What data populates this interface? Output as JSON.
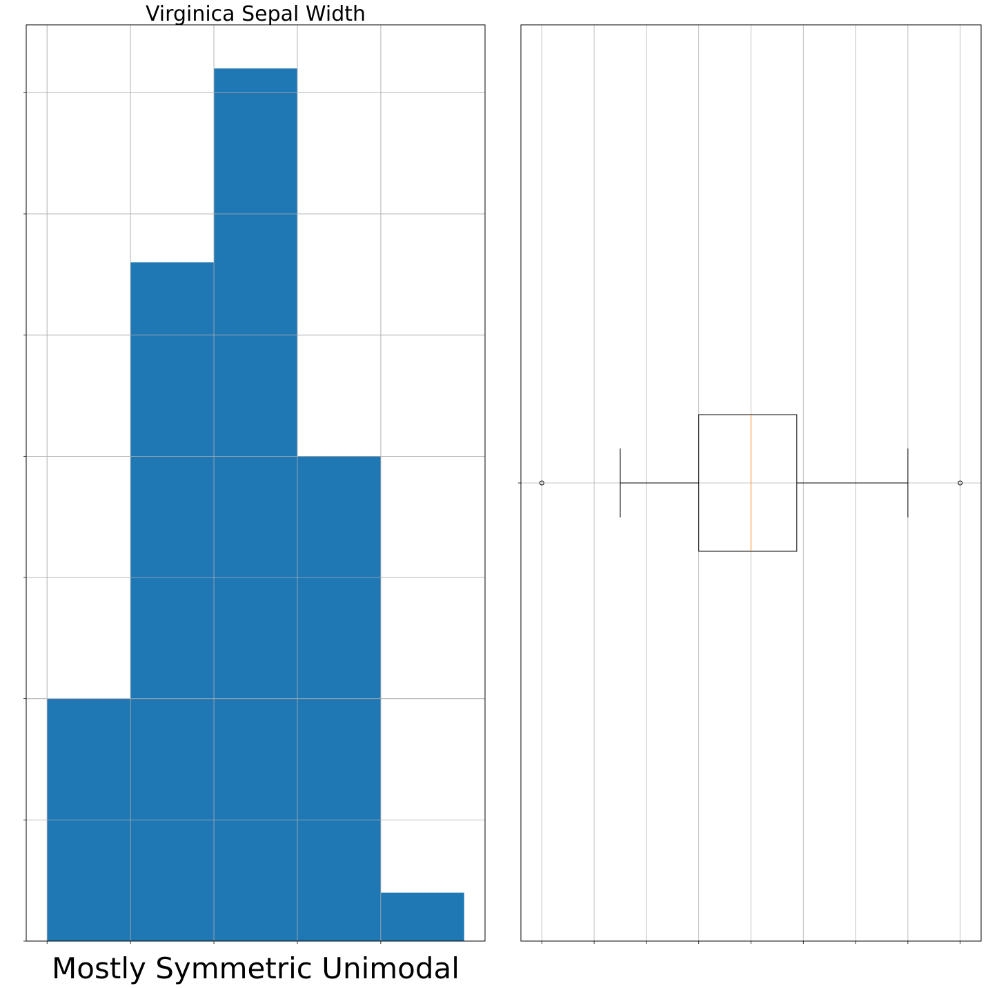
{
  "chart_data": [
    {
      "type": "bar",
      "chart_kind": "histogram",
      "title": "Virginica Sepal Width",
      "xlabel": "Mostly Symmetric Unimodal",
      "ylabel": "",
      "bin_edges": [
        2.2,
        2.52,
        2.84,
        3.16,
        3.48,
        3.8
      ],
      "values": [
        5,
        14,
        18,
        10,
        1
      ],
      "xticks": [
        "2.20",
        "2.52",
        "2.84",
        "3.16",
        "3.48"
      ],
      "yticks": [
        "0.0",
        "2.5",
        "5.0",
        "7.5",
        "10.0",
        "12.5",
        "15.0",
        "17.5"
      ],
      "xlim": [
        2.12,
        3.88
      ],
      "ylim": [
        0,
        18.9
      ],
      "grid": true,
      "bar_color": "#1f77b4"
    },
    {
      "type": "boxplot",
      "orientation": "horizontal",
      "title": "",
      "xlabel": "",
      "ylabel": "",
      "categories": [
        "1"
      ],
      "whisker_low": 2.5,
      "q1": 2.8,
      "median": 3.0,
      "q3": 3.175,
      "whisker_high": 3.6,
      "outliers": [
        2.2,
        3.8
      ],
      "xticks": [
        "2.2",
        "2.4",
        "2.6",
        "2.8",
        "3.0",
        "3.2",
        "3.4",
        "3.6",
        "3.8"
      ],
      "xlim": [
        2.12,
        3.88
      ],
      "grid": true,
      "median_color": "#ff7f0e",
      "box_color": "#000000"
    }
  ]
}
